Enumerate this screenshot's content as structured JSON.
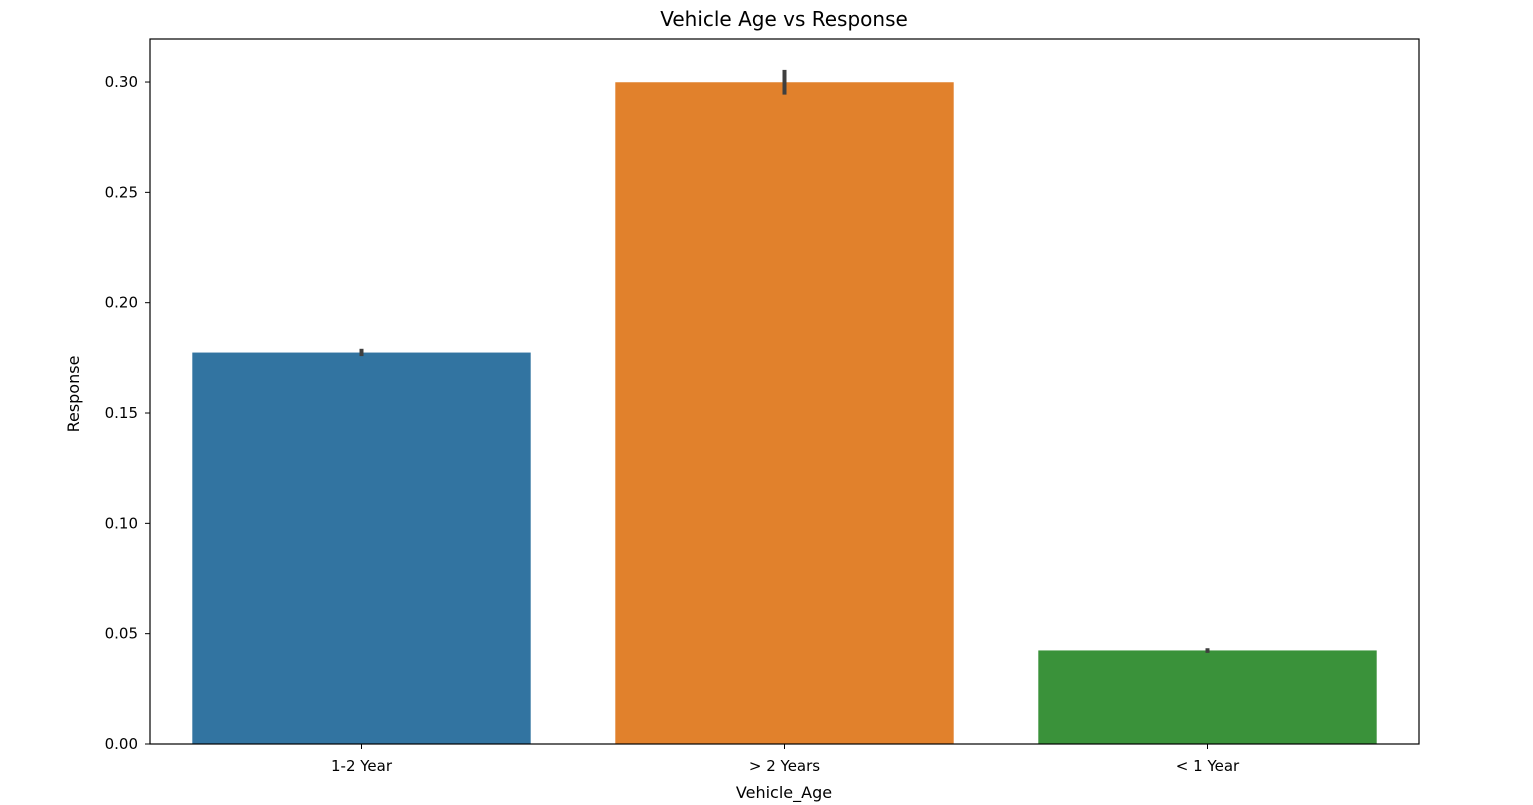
{
  "chart_data": {
    "type": "bar",
    "title": "Vehicle Age vs Response",
    "xlabel": "Vehicle_Age",
    "ylabel": "Response",
    "categories": [
      "1-2 Year",
      "> 2 Years",
      "< 1 Year"
    ],
    "values": [
      0.1774,
      0.2999,
      0.0424
    ],
    "error_bars": [
      [
        0.1758,
        0.1791
      ],
      [
        0.2943,
        0.3055
      ],
      [
        0.0413,
        0.0434
      ]
    ],
    "colors": [
      "#3274a1",
      "#e1812c",
      "#3a923a"
    ],
    "error_bar_color": "#3f3f3f",
    "ylim": [
      0,
      0.3195
    ],
    "yticks": [
      0.0,
      0.05,
      0.1,
      0.15,
      0.2,
      0.25,
      0.3
    ],
    "ytick_labels": [
      "0.00",
      "0.05",
      "0.10",
      "0.15",
      "0.20",
      "0.25",
      "0.30"
    ],
    "grid": false,
    "legend": "none"
  }
}
